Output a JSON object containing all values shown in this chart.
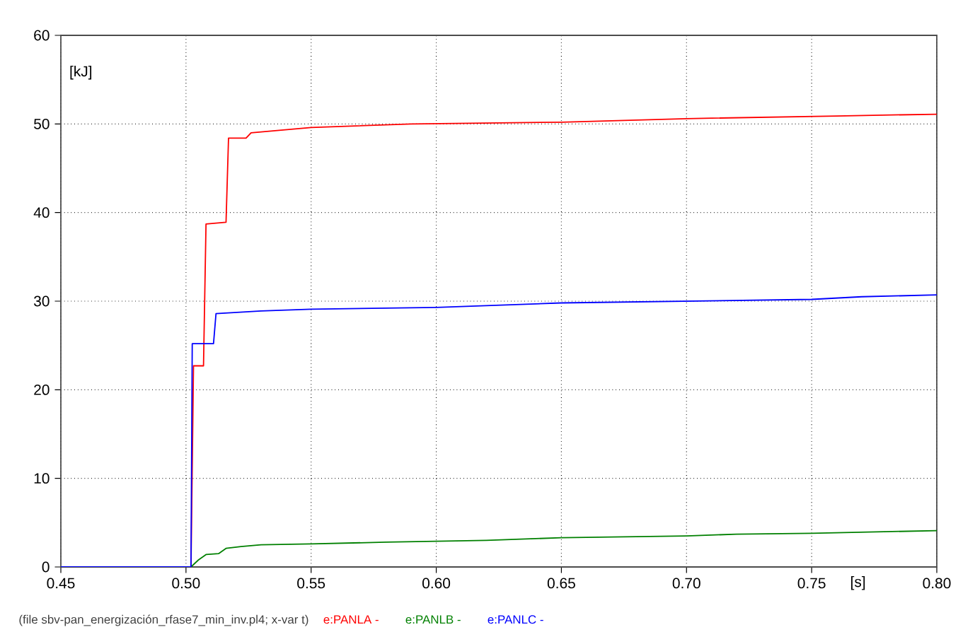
{
  "chart_data": {
    "type": "line",
    "xlabel": "[s]",
    "ylabel": "[kJ]",
    "annotations": [
      "(file sbv-pan_energización_rfase7_min_inv.pl4; x-var t)"
    ],
    "xlim": [
      0.45,
      0.8
    ],
    "ylim": [
      0,
      60
    ],
    "xticks": [
      0.45,
      {
        "value": 0.5,
        "label": "0.50"
      },
      0.55,
      {
        "value": 0.6,
        "label": "0.60"
      },
      0.65,
      {
        "value": 0.7,
        "label": "0.70"
      },
      0.75,
      {
        "value": 0.8,
        "label": "0.80"
      }
    ],
    "yticks": [
      0,
      10,
      20,
      30,
      40,
      50,
      60
    ],
    "grid": true,
    "legend": "bottom",
    "line_style": "solid",
    "marker": "none",
    "series": [
      {
        "name": "e:PANLA -",
        "color": "#ff0000",
        "x": [
          0.45,
          0.502,
          0.503,
          0.507,
          0.508,
          0.516,
          0.517,
          0.524,
          0.526,
          0.55,
          0.59,
          0.65,
          0.7,
          0.76,
          0.8
        ],
        "values": [
          0,
          0,
          22.7,
          22.7,
          38.7,
          38.9,
          48.4,
          48.4,
          49,
          49.6,
          50,
          50.2,
          50.6,
          50.9,
          51.1
        ]
      },
      {
        "name": "e:PANLB -",
        "color": "#008000",
        "x": [
          0.45,
          0.502,
          0.505,
          0.508,
          0.513,
          0.516,
          0.522,
          0.53,
          0.55,
          0.58,
          0.62,
          0.65,
          0.7,
          0.72,
          0.75,
          0.8
        ],
        "values": [
          0,
          0,
          0.8,
          1.4,
          1.5,
          2.1,
          2.3,
          2.5,
          2.6,
          2.8,
          3,
          3.3,
          3.5,
          3.7,
          3.8,
          4.1
        ]
      },
      {
        "name": "e:PANLC -",
        "color": "#0000ff",
        "x": [
          0.45,
          0.502,
          0.5025,
          0.511,
          0.512,
          0.53,
          0.55,
          0.6,
          0.65,
          0.7,
          0.75,
          0.77,
          0.8
        ],
        "values": [
          0,
          0,
          25.2,
          25.2,
          28.6,
          28.9,
          29.1,
          29.3,
          29.8,
          30,
          30.2,
          30.5,
          30.7
        ]
      }
    ]
  }
}
